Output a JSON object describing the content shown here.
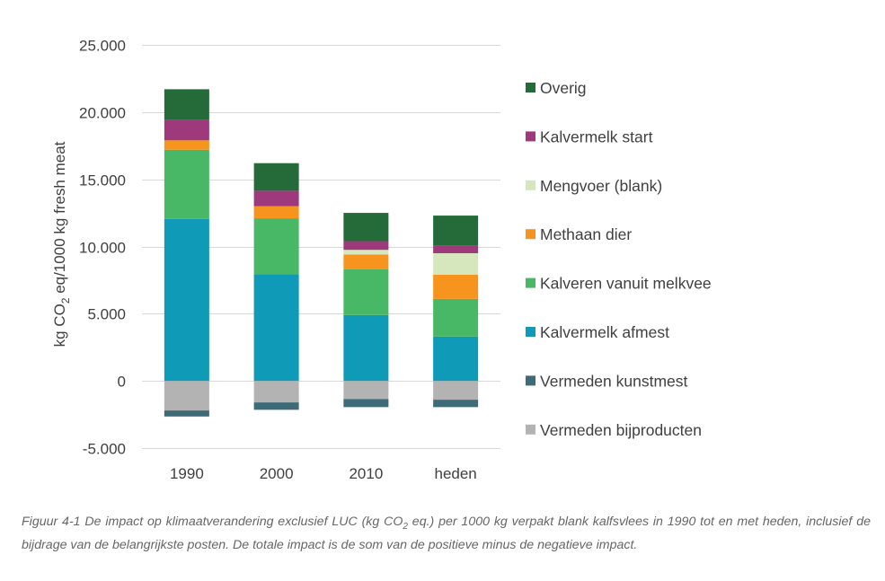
{
  "chart_data": {
    "type": "bar",
    "stacked": true,
    "categories": [
      "1990",
      "2000",
      "2010",
      "heden"
    ],
    "ylabel_parts": [
      "kg CO",
      "2",
      " eq/1000 kg fresh meat"
    ],
    "ylim": [
      -5000,
      25000
    ],
    "yticks": [
      -5000,
      0,
      5000,
      10000,
      15000,
      20000,
      25000
    ],
    "ytick_labels": [
      "-5.000",
      "0",
      "5.000",
      "10.000",
      "15.000",
      "20.000",
      "25.000"
    ],
    "grid": true,
    "legend_position": "right",
    "series": [
      {
        "name": "Vermeden bijproducten",
        "color": "#b3b3b3",
        "values": [
          -2200,
          -1600,
          -1350,
          -1400
        ]
      },
      {
        "name": "Vermeden kunstmest",
        "color": "#3e6b78",
        "values": [
          -450,
          -550,
          -600,
          -550
        ]
      },
      {
        "name": "Kalvermelk afmest",
        "color": "#0f9bb8",
        "values": [
          12050,
          7950,
          4900,
          3300
        ]
      },
      {
        "name": "Kalveren vanuit melkvee",
        "color": "#49b866",
        "values": [
          5150,
          4150,
          3400,
          2800
        ]
      },
      {
        "name": "Methaan dier",
        "color": "#f7941d",
        "values": [
          700,
          900,
          1100,
          1800
        ]
      },
      {
        "name": "Mengvoer (blank)",
        "color": "#d6e6bd",
        "values": [
          0,
          0,
          350,
          1600
        ]
      },
      {
        "name": "Kalvermelk start",
        "color": "#9e3a7c",
        "values": [
          1550,
          1150,
          650,
          550
        ]
      },
      {
        "name": "Overig",
        "color": "#246b39",
        "values": [
          2250,
          2050,
          2100,
          2250
        ]
      }
    ]
  },
  "caption": {
    "part1": "Figuur 4-1 De impact op klimaatverandering exclusief LUC (kg CO",
    "sub": "2",
    "part2": " eq.) per 1000 kg verpakt blank kalfsvlees in 1990 tot en met heden, inclusief de bijdrage van de belangrijkste posten. De totale impact is de som van de positieve minus de negatieve impact."
  }
}
